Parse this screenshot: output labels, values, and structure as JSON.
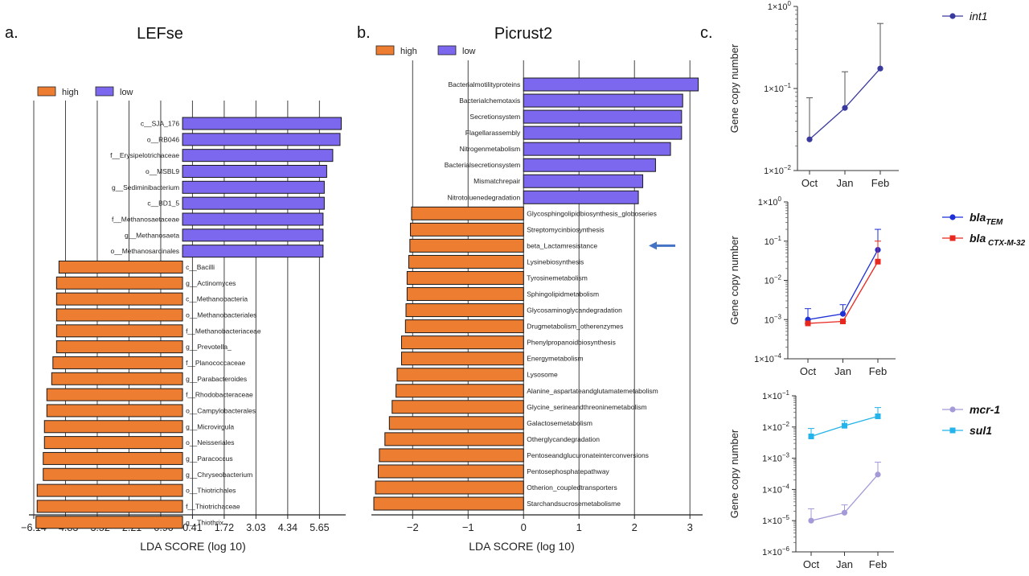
{
  "colors": {
    "high": "#ED7D31",
    "low": "#7B68EE",
    "int1": "#3A3A9E",
    "blaTEM": "#1E2FD6",
    "blaCTX": "#E8281E",
    "mcr1": "#A59AD8",
    "sul1": "#24B3EA"
  },
  "panels": {
    "a": "a.",
    "b": "b.",
    "c": "c."
  },
  "chart_data": [
    {
      "id": "lefse",
      "type": "bar",
      "orientation": "horizontal",
      "title": "LEFse",
      "xlabel": "LDA SCORE (log 10)",
      "legend": [
        "high",
        "low"
      ],
      "legend_position": "top-left",
      "ticks": [
        -6.14,
        -4.83,
        -3.52,
        -2.21,
        -0.9,
        0.41,
        1.72,
        3.03,
        4.34,
        5.65
      ],
      "tick_labels": [
        "−6.14",
        "−4.83",
        "−3.52",
        "−2.21",
        "−0.90",
        "0.41",
        "1.72",
        "3.03",
        "4.34",
        "5.65"
      ],
      "xlim": [
        -6.14,
        6.6
      ],
      "grid": "vertical",
      "bars": [
        {
          "label": "c__SJA_176",
          "value": 6.55,
          "group": "low"
        },
        {
          "label": "o__RB046",
          "value": 6.5,
          "group": "low"
        },
        {
          "label": "f__Erysipelotrichaceae",
          "value": 6.2,
          "group": "low"
        },
        {
          "label": "o__MSBL9",
          "value": 5.95,
          "group": "low"
        },
        {
          "label": "g__Sediminibacterium",
          "value": 5.85,
          "group": "low"
        },
        {
          "label": "c__BD1_5",
          "value": 5.85,
          "group": "low"
        },
        {
          "label": "f__Methanosaetaceae",
          "value": 5.8,
          "group": "low"
        },
        {
          "label": "g__Methanosaeta",
          "value": 5.8,
          "group": "low"
        },
        {
          "label": "o__Methanosarcinales",
          "value": 5.8,
          "group": "low"
        },
        {
          "label": "c__Bacilli",
          "value": -5.1,
          "group": "high"
        },
        {
          "label": "g__Actinomyces",
          "value": -5.2,
          "group": "high"
        },
        {
          "label": "c__Methanobacteria",
          "value": -5.2,
          "group": "high"
        },
        {
          "label": "o__Methanobacteriales",
          "value": -5.2,
          "group": "high"
        },
        {
          "label": "f__Methanobacteriaceae",
          "value": -5.2,
          "group": "high"
        },
        {
          "label": "g__Prevotella_",
          "value": -5.2,
          "group": "high"
        },
        {
          "label": "f__Planococcaceae",
          "value": -5.35,
          "group": "high"
        },
        {
          "label": "g__Parabacteroides",
          "value": -5.4,
          "group": "high"
        },
        {
          "label": "f__Rhodobacteraceae",
          "value": -5.6,
          "group": "high"
        },
        {
          "label": "o__Campylobacterales",
          "value": -5.6,
          "group": "high"
        },
        {
          "label": "g__Microvirgula",
          "value": -5.7,
          "group": "high"
        },
        {
          "label": "o__Neisseriales",
          "value": -5.7,
          "group": "high"
        },
        {
          "label": "g__Paracoccus",
          "value": -5.75,
          "group": "high"
        },
        {
          "label": "g__Chryseobacterium",
          "value": -5.75,
          "group": "high"
        },
        {
          "label": "o__Thiotrichales",
          "value": -6.0,
          "group": "high"
        },
        {
          "label": "f__Thiotrichaceae",
          "value": -6.0,
          "group": "high"
        },
        {
          "label": "g__Thiothrix",
          "value": -6.05,
          "group": "high"
        }
      ],
      "annotations": []
    },
    {
      "id": "picrust",
      "type": "bar",
      "orientation": "horizontal",
      "title": "Picrust2",
      "xlabel": "LDA SCORE (log 10)",
      "legend": [
        "high",
        "low"
      ],
      "legend_position": "top-left",
      "ticks": [
        -2,
        -1,
        0,
        1,
        2,
        3
      ],
      "tick_labels": [
        "−2",
        "−1",
        "0",
        "1",
        "2",
        "3"
      ],
      "xlim": [
        -2.7,
        3.2
      ],
      "grid": "vertical",
      "bars": [
        {
          "label": "Bacterialmotilityproteins",
          "value": 3.15,
          "group": "low"
        },
        {
          "label": "Bacterialchemotaxis",
          "value": 2.87,
          "group": "low"
        },
        {
          "label": "Secretionsystem",
          "value": 2.85,
          "group": "low"
        },
        {
          "label": "Flagellarassembly",
          "value": 2.85,
          "group": "low"
        },
        {
          "label": "Nitrogenmetabolism",
          "value": 2.65,
          "group": "low"
        },
        {
          "label": "Bacterialsecretionsystem",
          "value": 2.38,
          "group": "low"
        },
        {
          "label": "Mismatchrepair",
          "value": 2.15,
          "group": "low"
        },
        {
          "label": "Nitrotoluenedegradation",
          "value": 2.07,
          "group": "low"
        },
        {
          "label": "Glycosphingolipidbiosynthesis_globoseries",
          "value": -2.02,
          "group": "high"
        },
        {
          "label": "Streptomycinbiosynthesis",
          "value": -2.04,
          "group": "high"
        },
        {
          "label": "beta_Lactamresistance",
          "value": -2.05,
          "group": "high"
        },
        {
          "label": "Lysinebiosynthesis",
          "value": -2.07,
          "group": "high"
        },
        {
          "label": "Tyrosinemetabolism",
          "value": -2.1,
          "group": "high"
        },
        {
          "label": "Sphingolipidmetabolism",
          "value": -2.1,
          "group": "high"
        },
        {
          "label": "Glycosaminoglycandegradation",
          "value": -2.12,
          "group": "high"
        },
        {
          "label": "Drugmetabolism_otherenzymes",
          "value": -2.13,
          "group": "high"
        },
        {
          "label": "Phenylpropanoidbiosynthesis",
          "value": -2.2,
          "group": "high"
        },
        {
          "label": "Energymetabolism",
          "value": -2.2,
          "group": "high"
        },
        {
          "label": "Lysosome",
          "value": -2.28,
          "group": "high"
        },
        {
          "label": "Alanine_aspartateandglutamatemetabolism",
          "value": -2.3,
          "group": "high"
        },
        {
          "label": "Glycine_serineandthreoninemetabolism",
          "value": -2.37,
          "group": "high"
        },
        {
          "label": "Galactosemetabolism",
          "value": -2.42,
          "group": "high"
        },
        {
          "label": "Otherglycandegradation",
          "value": -2.5,
          "group": "high"
        },
        {
          "label": "Pentoseandglucuronateinterconversions",
          "value": -2.6,
          "group": "high"
        },
        {
          "label": "Pentosephosphatepathway",
          "value": -2.62,
          "group": "high"
        },
        {
          "label": "Otherion_coupledtransporters",
          "value": -2.67,
          "group": "high"
        },
        {
          "label": "Starchandsucrosemetabolisme",
          "value": -2.7,
          "group": "high"
        }
      ],
      "annotations": [
        {
          "type": "arrow",
          "target": "beta_Lactamresistance",
          "color": "#4472C4"
        }
      ]
    },
    {
      "id": "c1",
      "type": "line",
      "yscale": "log",
      "ylabel": "Gene copy number",
      "categories": [
        "Oct",
        "Jan",
        "Feb"
      ],
      "ylim": [
        0.01,
        1
      ],
      "yticks": [
        {
          "base": "1×10",
          "exp": "0"
        },
        {
          "base": "1×10",
          "exp": "−1"
        },
        {
          "base": "1×10",
          "exp": "−2"
        }
      ],
      "ytick_values": [
        1,
        0.1,
        0.01
      ],
      "series": [
        {
          "name": "int1",
          "name_sub": "",
          "color_key": "int1",
          "marker": "circle",
          "values": [
            0.024,
            0.058,
            0.175
          ],
          "errors_upper": [
            0.077,
            0.16,
            0.62
          ]
        }
      ]
    },
    {
      "id": "c2",
      "type": "line",
      "yscale": "log",
      "ylabel": "Gene copy number",
      "categories": [
        "Oct",
        "Jan",
        "Feb"
      ],
      "ylim": [
        0.0001,
        1
      ],
      "yticks": [
        {
          "base": "1×10",
          "exp": "0"
        },
        {
          "base": "10",
          "exp": "−1"
        },
        {
          "base": "10",
          "exp": "−2"
        },
        {
          "base": "10",
          "exp": "−3"
        },
        {
          "base": "1×10",
          "exp": "−4"
        }
      ],
      "ytick_values": [
        1,
        0.1,
        0.01,
        0.001,
        0.0001
      ],
      "series": [
        {
          "name": "bla",
          "name_sub": "TEM",
          "color_key": "blaTEM",
          "marker": "circle",
          "values": [
            0.001,
            0.0014,
            0.06
          ],
          "errors_upper": [
            0.0019,
            0.0024,
            0.2
          ]
        },
        {
          "name": "bla",
          "name_sub": " CTX-M-32",
          "color_key": "blaCTX",
          "marker": "square",
          "values": [
            0.0008,
            0.0009,
            0.03
          ],
          "errors_upper": [
            0.0008,
            0.0009,
            0.1
          ]
        }
      ]
    },
    {
      "id": "c3",
      "type": "line",
      "yscale": "log",
      "ylabel": "Gene copy number",
      "categories": [
        "Oct",
        "Jan",
        "Feb"
      ],
      "ylim": [
        1e-06,
        0.1
      ],
      "yticks": [
        {
          "base": "1×10",
          "exp": "−1"
        },
        {
          "base": "1×10",
          "exp": "−2"
        },
        {
          "base": "1×10",
          "exp": "−3"
        },
        {
          "base": "1×10",
          "exp": "−4"
        },
        {
          "base": "1×10",
          "exp": "−5"
        },
        {
          "base": "1×10",
          "exp": "−6"
        }
      ],
      "ytick_values": [
        0.1,
        0.01,
        0.001,
        0.0001,
        1e-05,
        1e-06
      ],
      "series": [
        {
          "name": "mcr-1",
          "name_sub": "",
          "color_key": "mcr1",
          "marker": "circle",
          "values": [
            1e-05,
            1.8e-05,
            0.0003
          ],
          "errors_upper": [
            2.4e-05,
            3.2e-05,
            0.00075
          ]
        },
        {
          "name": "sul1",
          "name_sub": "",
          "color_key": "sul1",
          "marker": "square",
          "values": [
            0.005,
            0.011,
            0.022
          ],
          "errors_upper": [
            0.009,
            0.016,
            0.042
          ]
        }
      ]
    }
  ]
}
